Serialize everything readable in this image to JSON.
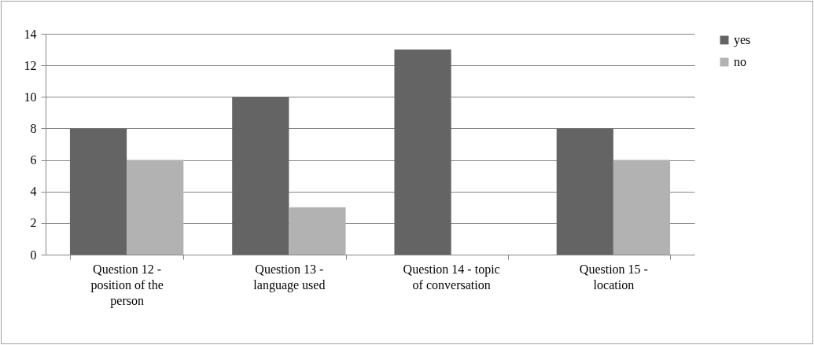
{
  "chart_data": {
    "type": "bar",
    "categories": [
      "Question 12 - position of the person",
      "Question 13 - language used",
      "Question 14 - topic of conversation",
      "Question 15 - location"
    ],
    "series": [
      {
        "name": "yes",
        "color": "#646464",
        "values": [
          8,
          10,
          13,
          8
        ]
      },
      {
        "name": "no",
        "color": "#b2b2b2",
        "values": [
          6,
          3,
          0,
          6
        ]
      }
    ],
    "ylim": [
      0,
      14
    ],
    "yticks": [
      0,
      2,
      4,
      6,
      8,
      10,
      12,
      14
    ],
    "grid": "y",
    "legend": "right"
  }
}
